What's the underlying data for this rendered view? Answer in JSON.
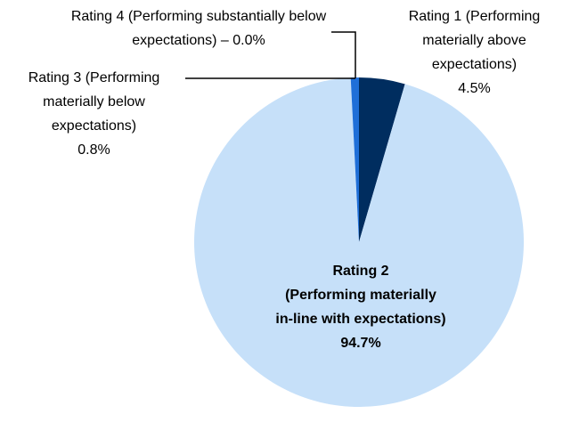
{
  "chart_data": {
    "type": "pie",
    "categories": [
      "Rating 1 (Performing materially above expectations)",
      "Rating 2\n(Performing materially\nin-line with expectations)",
      "Rating 3 (Performing materially below expectations)",
      "Rating 4 (Performing substantially below expectations) –"
    ],
    "values": [
      4.5,
      94.7,
      0.8,
      0.0
    ],
    "value_labels": [
      "4.5%",
      "94.7%",
      "0.8%",
      "0.0%"
    ],
    "colors": [
      "#002d5f",
      "#c6e0f9",
      "#1f6fd8",
      "#0050a0"
    ]
  }
}
